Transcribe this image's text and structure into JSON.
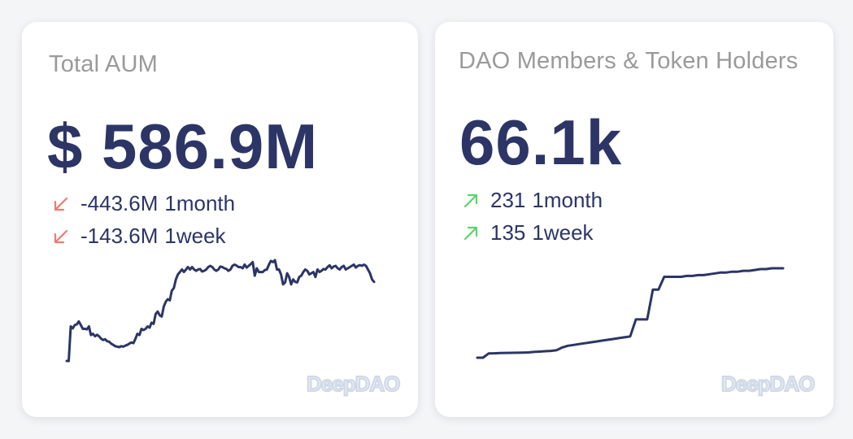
{
  "cards": {
    "aum": {
      "title": "Total AUM",
      "value": "$ 586.9M",
      "changes": [
        {
          "amount": "-443.6M",
          "period": "1month",
          "direction": "down"
        },
        {
          "amount": "-143.6M",
          "period": "1week",
          "direction": "down"
        }
      ],
      "watermark": "DeepDAO"
    },
    "members": {
      "title": "DAO Members & Token Holders",
      "value": "66.1k",
      "changes": [
        {
          "amount": "231",
          "period": "1month",
          "direction": "up"
        },
        {
          "amount": "135",
          "period": "1week",
          "direction": "up"
        }
      ],
      "watermark": "DeepDAO"
    }
  },
  "colors": {
    "primary": "#2c3566",
    "title": "#9a9a9a",
    "down": "#f07a72",
    "up": "#5fd16b"
  },
  "chart_data": [
    {
      "type": "line",
      "series": [
        {
          "values": [
            100,
            100,
            240,
            232,
            245,
            248,
            260,
            245,
            230,
            230,
            228,
            240,
            205,
            210,
            200,
            206,
            200,
            190,
            185,
            188,
            180,
            178,
            170,
            165,
            160,
            158,
            156,
            160,
            158,
            162,
            165,
            170,
            175,
            172,
            190,
            210,
            205,
            230,
            225,
            230,
            240,
            235,
            255,
            250,
            290,
            300,
            285,
            280,
            320,
            340,
            350,
            345,
            385,
            395,
            430,
            450,
            460,
            470,
            460,
            470,
            480,
            470,
            480,
            470,
            465,
            470,
            472,
            462,
            465,
            470,
            480,
            485,
            480,
            470,
            465,
            470,
            482,
            480,
            475,
            472,
            465,
            470,
            485,
            490,
            486,
            480,
            480,
            475,
            490,
            478,
            485,
            492,
            500,
            445,
            475,
            460,
            460,
            460,
            468,
            470,
            490,
            505,
            500,
            508,
            470,
            470,
            450,
            410,
            418,
            455,
            440,
            410,
            430,
            420,
            418,
            440,
            445,
            460,
            470,
            465,
            450,
            455,
            460,
            440,
            470,
            460,
            465,
            472,
            470,
            480,
            487,
            475,
            482,
            485,
            475,
            470,
            480,
            485,
            470,
            475,
            480,
            485,
            490,
            478,
            485,
            488,
            485,
            490,
            485,
            470,
            455,
            430,
            420
          ]
        }
      ]
    },
    {
      "type": "line",
      "series": [
        {
          "values": [
            0,
            0,
            500,
            520,
            540,
            560,
            570,
            580,
            600,
            620,
            680,
            720,
            760,
            800,
            880,
            1200,
            1400,
            1500,
            1600,
            1700,
            1800,
            1900,
            2000,
            2100,
            2200,
            2300,
            2400,
            2500,
            4500,
            4500,
            4500,
            8000,
            8000,
            9500,
            9500,
            9500,
            9500,
            9600,
            9600,
            9700,
            9700,
            9800,
            9900,
            10000,
            10000,
            10100,
            10100,
            10200,
            10200,
            10300,
            10400,
            10400,
            10500,
            10500,
            10500
          ]
        }
      ]
    }
  ]
}
